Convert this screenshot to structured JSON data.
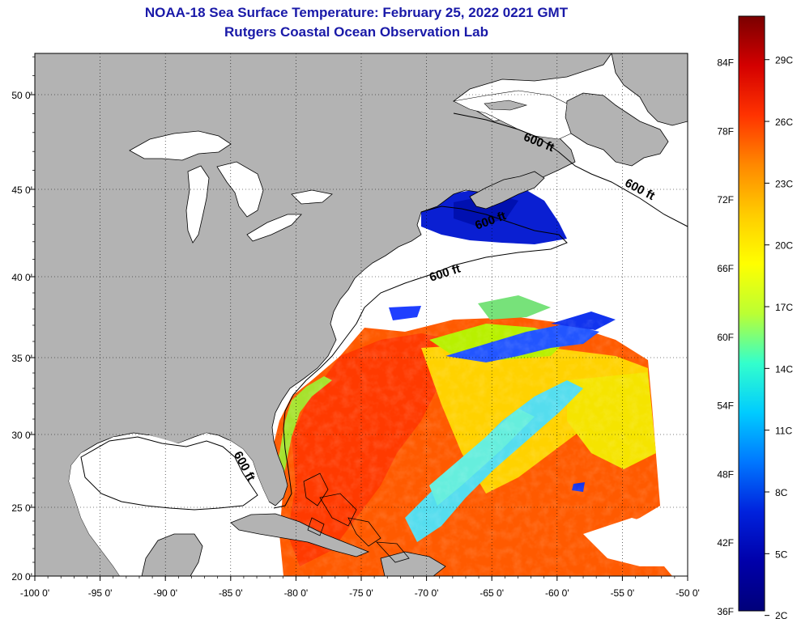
{
  "title_line1": "NOAA-18 Sea Surface Temperature:  February 25, 2022 0221 GMT",
  "title_line2": "Rutgers Coastal Ocean Observation Lab",
  "lon_ticks": [
    {
      "lon": -100,
      "label": "-100 0'"
    },
    {
      "lon": -95,
      "label": "-95 0'"
    },
    {
      "lon": -90,
      "label": "-90 0'"
    },
    {
      "lon": -85,
      "label": "-85 0'"
    },
    {
      "lon": -80,
      "label": "-80 0'"
    },
    {
      "lon": -75,
      "label": "-75 0'"
    },
    {
      "lon": -70,
      "label": "-70 0'"
    },
    {
      "lon": -65,
      "label": "-65 0'"
    },
    {
      "lon": -60,
      "label": "-60 0'"
    },
    {
      "lon": -55,
      "label": "-55 0'"
    },
    {
      "lon": -50,
      "label": "-50 0'"
    }
  ],
  "lat_ticks": [
    {
      "lat": 20,
      "label": "20 0'"
    },
    {
      "lat": 25,
      "label": "25 0'"
    },
    {
      "lat": 30,
      "label": "30 0'"
    },
    {
      "lat": 35,
      "label": "35 0'"
    },
    {
      "lat": 40,
      "label": "40 0'"
    },
    {
      "lat": 45,
      "label": "45 0'"
    },
    {
      "lat": 50,
      "label": "50 0'"
    }
  ],
  "contour_labels": [
    {
      "text": "600 ft",
      "lon": -61.5,
      "lat": 47.3
    },
    {
      "text": "600 ft",
      "lon": -53.8,
      "lat": 44.8
    },
    {
      "text": "600 ft",
      "lon": -65.0,
      "lat": 43.0
    },
    {
      "text": "600 ft",
      "lon": -68.5,
      "lat": 40.0
    },
    {
      "text": "600 ft",
      "lon": -84.2,
      "lat": 27.7
    }
  ],
  "colorbar": {
    "fahrenheit_labels": [
      {
        "value": 84,
        "label": "84F"
      },
      {
        "value": 78,
        "label": "78F"
      },
      {
        "value": 72,
        "label": "72F"
      },
      {
        "value": 66,
        "label": "66F"
      },
      {
        "value": 60,
        "label": "60F"
      },
      {
        "value": 54,
        "label": "54F"
      },
      {
        "value": 48,
        "label": "48F"
      },
      {
        "value": 42,
        "label": "42F"
      },
      {
        "value": 36,
        "label": "36F"
      }
    ],
    "celsius_labels": [
      {
        "value": 29,
        "label": "29C"
      },
      {
        "value": 26,
        "label": "26C"
      },
      {
        "value": 23,
        "label": "23C"
      },
      {
        "value": 20,
        "label": "20C"
      },
      {
        "value": 17,
        "label": "17C"
      },
      {
        "value": 14,
        "label": "14C"
      },
      {
        "value": 11,
        "label": "11C"
      },
      {
        "value": 8,
        "label": "8C"
      },
      {
        "value": 5,
        "label": "5C"
      },
      {
        "value": 2,
        "label": "2C"
      }
    ],
    "min_f": 36,
    "max_f": 88,
    "gradient": [
      "#7a0000",
      "#d40000",
      "#ff3300",
      "#ff8800",
      "#ffcc00",
      "#ffff00",
      "#bbff33",
      "#33ffcc",
      "#00ccff",
      "#0077ff",
      "#0022dd",
      "#0000aa",
      "#00007a"
    ]
  },
  "colors": {
    "land": "#b3b3b3",
    "ocean_no_data": "#ffffff",
    "title": "#1919a8"
  }
}
